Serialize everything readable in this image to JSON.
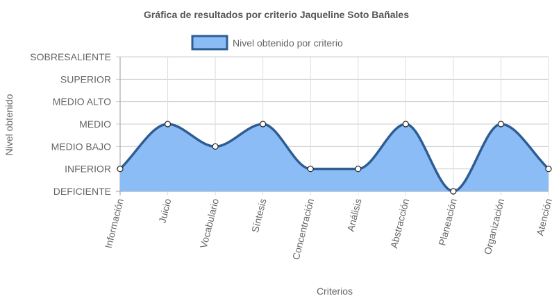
{
  "chart_data": {
    "type": "area",
    "title": "Gráfica de resultados por criterio Jaqueline Soto Bañales",
    "xlabel": "Criterios",
    "ylabel": "Nivel obtenido",
    "legend": {
      "position": "top-center"
    },
    "grid": true,
    "y_levels": [
      "DEFICIENTE",
      "INFERIOR",
      "MEDIO BAJO",
      "MEDIO",
      "MEDIO ALTO",
      "SUPERIOR",
      "SOBRESALIENTE"
    ],
    "ylim": [
      0,
      6
    ],
    "categories": [
      "Información",
      "Juicio",
      "Vocabulario",
      "Síntesis",
      "Concentración",
      "Análisis",
      "Abstracción",
      "Planeación",
      "Organización",
      "Atención"
    ],
    "series": [
      {
        "name": "Nivel obtenido por criterio",
        "values": [
          1,
          3,
          2,
          3,
          1,
          1,
          3,
          0,
          3,
          1
        ],
        "line_color": "#2e5d93",
        "fill_color": "#8bbcf5",
        "point_fill": "#ffffff"
      }
    ]
  }
}
